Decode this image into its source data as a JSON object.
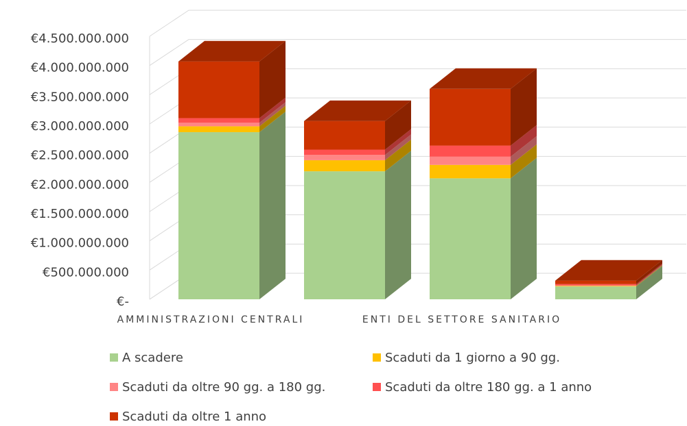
{
  "chart_data": {
    "type": "bar3d_stacked",
    "categories": [
      "AMMINISTRAZIONI CENTRALI",
      null,
      "ENTI DEL SETTORE SANITARIO",
      null
    ],
    "series": [
      {
        "name": "A scadere",
        "color": "#a9d18e",
        "values": [
          2860000000,
          2190000000,
          2070000000,
          220000000
        ]
      },
      {
        "name": "Scaduti da 1 giorno a 90 gg.",
        "color": "#ffc000",
        "values": [
          100000000,
          190000000,
          230000000,
          10000000
        ]
      },
      {
        "name": "Scaduti da oltre 90 gg. a 180 gg.",
        "color": "#ff8585",
        "values": [
          60000000,
          90000000,
          140000000,
          10000000
        ]
      },
      {
        "name": "Scaduti da oltre 180 gg. a 1 anno",
        "color": "#ff5050",
        "values": [
          80000000,
          90000000,
          190000000,
          20000000
        ]
      },
      {
        "name": "Scaduti da oltre 1 anno",
        "color": "#cc3300",
        "values": [
          970000000,
          490000000,
          970000000,
          60000000
        ]
      }
    ],
    "ylim": [
      0,
      4500000000
    ],
    "yticks": [
      {
        "value": 0,
        "label": "€-"
      },
      {
        "value": 500000000,
        "label": "€500.000.000"
      },
      {
        "value": 1000000000,
        "label": "€1.000.000.000"
      },
      {
        "value": 1500000000,
        "label": "€1.500.000.000"
      },
      {
        "value": 2000000000,
        "label": "€2.000.000.000"
      },
      {
        "value": 2500000000,
        "label": "€2.500.000.000"
      },
      {
        "value": 3000000000,
        "label": "€3.000.000.000"
      },
      {
        "value": 3500000000,
        "label": "€3.500.000.000"
      },
      {
        "value": 4000000000,
        "label": "€4.000.000.000"
      },
      {
        "value": 4500000000,
        "label": "€4.500.000.000"
      }
    ],
    "grid": true
  }
}
